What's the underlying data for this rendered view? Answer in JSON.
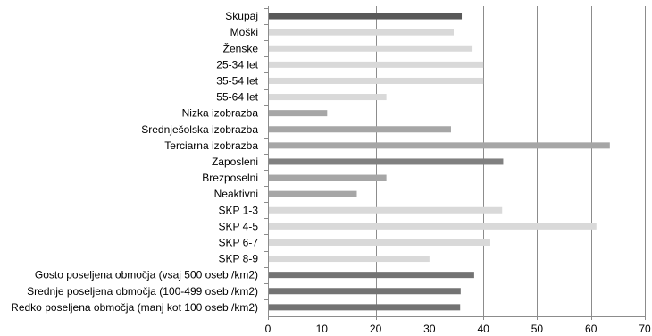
{
  "chart_data": {
    "type": "bar",
    "orientation": "horizontal",
    "categories": [
      "Skupaj",
      "Moški",
      "Ženske",
      "25-34 let",
      "35-54 let",
      "55-64 let",
      "Nizka izobrazba",
      "Srednješolska izobrazba",
      "Terciarna izobrazba",
      "Zaposleni",
      "Brezposelni",
      "Neaktivni",
      "SKP 1-3",
      "SKP 4-5",
      "SKP 6-7",
      "SKP 8-9",
      "Gosto poseljena območja (vsaj 500 oseb /km2)",
      "Srednje poseljena območja (100-499 oseb /km2)",
      "Redko poseljena območja (manj kot 100 oseb /km2)"
    ],
    "values": [
      36,
      34.5,
      38,
      40,
      40,
      22,
      11,
      34,
      63.5,
      43.7,
      22,
      16.5,
      43.5,
      61,
      41.3,
      30,
      38.3,
      35.8,
      35.7
    ],
    "bar_colors": [
      "#595959",
      "#d9d9d9",
      "#d9d9d9",
      "#d9d9d9",
      "#d9d9d9",
      "#d9d9d9",
      "#a6a6a6",
      "#a6a6a6",
      "#a6a6a6",
      "#808080",
      "#a6a6a6",
      "#a6a6a6",
      "#d9d9d9",
      "#d9d9d9",
      "#d9d9d9",
      "#d9d9d9",
      "#737373",
      "#737373",
      "#737373"
    ],
    "xlim": [
      0,
      70
    ],
    "xticks": [
      "0",
      "10",
      "20",
      "30",
      "40",
      "50",
      "60",
      "70"
    ],
    "grid": "vertical",
    "legend": "none",
    "title": "",
    "xlabel": "",
    "ylabel": ""
  },
  "colors": {
    "grid": "#8c8c8c",
    "text": "#000000"
  }
}
